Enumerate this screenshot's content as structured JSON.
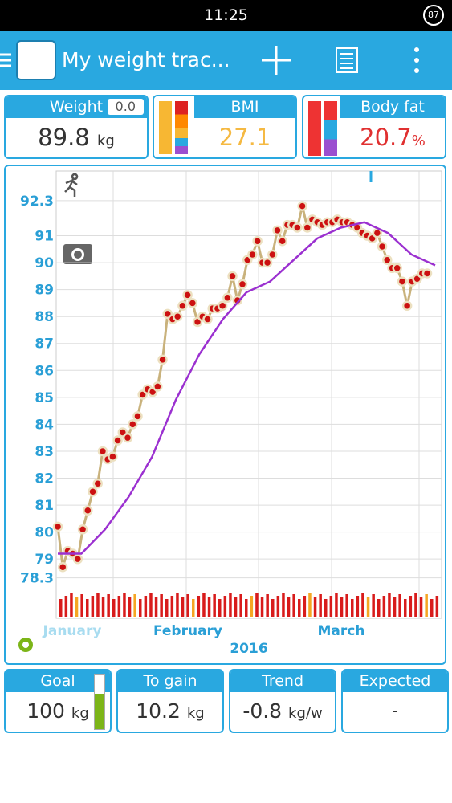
{
  "status_bar": {
    "time": "11:25",
    "battery": "87"
  },
  "app_bar": {
    "title": "My weight trac..."
  },
  "cards": {
    "weight": {
      "label": "Weight",
      "badge": "0.0",
      "value": "89.8",
      "unit": "kg"
    },
    "bmi": {
      "label": "BMI",
      "value": "27.1"
    },
    "body_fat": {
      "label": "Body fat",
      "value": "20.7",
      "unit": "%"
    }
  },
  "chart_data": {
    "type": "line",
    "series": [
      {
        "color": "#c9b27c",
        "marker_color": "#cc1111",
        "values": [
          80.2,
          78.7,
          79.3,
          79.2,
          79.0,
          80.1,
          80.8,
          81.5,
          81.8,
          83.0,
          82.7,
          82.8,
          83.4,
          83.7,
          83.5,
          84.0,
          84.3,
          85.1,
          85.3,
          85.2,
          85.4,
          86.4,
          88.1,
          87.9,
          88.0,
          88.4,
          88.8,
          88.5,
          87.8,
          88.0,
          87.9,
          88.3,
          88.3,
          88.4,
          88.7,
          89.5,
          88.6,
          89.2,
          90.1,
          90.3,
          90.8,
          90.0,
          90.0,
          90.3,
          91.2,
          90.8,
          91.4,
          91.4,
          91.3,
          92.1,
          91.3,
          91.6,
          91.5,
          91.4,
          91.5,
          91.5,
          91.6,
          91.5,
          91.5,
          91.4,
          91.3,
          91.1,
          91.0,
          90.9,
          91.1,
          90.6,
          90.1,
          89.8,
          89.8,
          89.3,
          88.4,
          89.3,
          89.4,
          89.6,
          89.6
        ]
      },
      {
        "color": "#9b30d0",
        "values": [
          79.2,
          79.2,
          80.1,
          81.3,
          82.8,
          84.9,
          86.6,
          87.9,
          88.9,
          89.3,
          90.1,
          90.9,
          91.3,
          91.5,
          91.1,
          90.3,
          89.9
        ]
      }
    ],
    "months": [
      "January",
      "February",
      "March"
    ],
    "year": "2016",
    "ylim": [
      76.8,
      93.4
    ],
    "yticks": [
      78.3,
      79,
      80,
      81,
      82,
      83,
      84,
      85,
      86,
      87,
      88,
      89,
      90,
      91,
      92.3
    ],
    "grid": true
  },
  "bottom_cards": [
    {
      "label": "Goal",
      "value": "100",
      "unit": "kg"
    },
    {
      "label": "To gain",
      "value": "10.2",
      "unit": "kg"
    },
    {
      "label": "Trend",
      "value": "-0.8",
      "unit": "kg/w"
    },
    {
      "label": "Expected",
      "value": "-"
    }
  ]
}
